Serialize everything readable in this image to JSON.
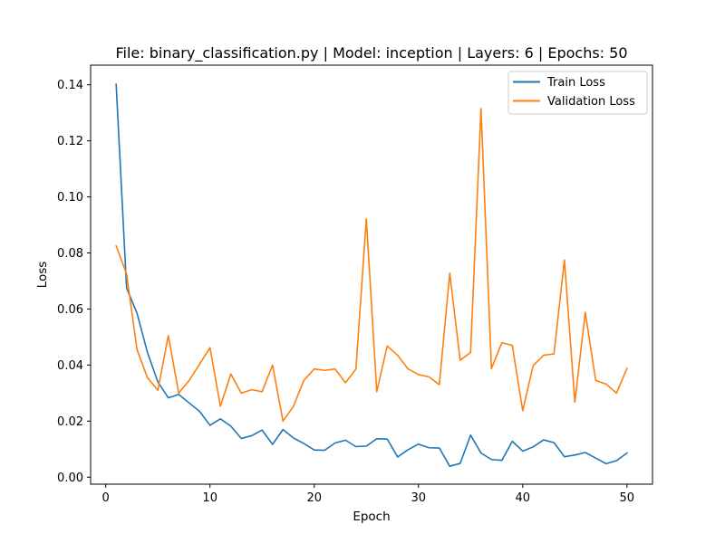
{
  "chart_data": {
    "type": "line",
    "title": "File: binary_classification.py | Model: inception | Layers: 6 | Epochs: 50",
    "xlabel": "Epoch",
    "ylabel": "Loss",
    "xlim": [
      -1.45,
      52.45
    ],
    "ylim": [
      -0.0025,
      0.147
    ],
    "xticks": [
      0,
      10,
      20,
      30,
      40,
      50
    ],
    "xtick_labels": [
      "0",
      "10",
      "20",
      "30",
      "40",
      "50"
    ],
    "yticks": [
      0.0,
      0.02,
      0.04,
      0.06,
      0.08,
      0.1,
      0.12,
      0.14
    ],
    "ytick_labels": [
      "0.00",
      "0.02",
      "0.04",
      "0.06",
      "0.08",
      "0.10",
      "0.12",
      "0.14"
    ],
    "grid": false,
    "legend_position": "top-right",
    "x": [
      1,
      2,
      3,
      4,
      5,
      6,
      7,
      8,
      9,
      10,
      11,
      12,
      13,
      14,
      15,
      16,
      17,
      18,
      19,
      20,
      21,
      22,
      23,
      24,
      25,
      26,
      27,
      28,
      29,
      30,
      31,
      32,
      33,
      34,
      35,
      36,
      37,
      38,
      39,
      40,
      41,
      42,
      43,
      44,
      45,
      46,
      47,
      48,
      49,
      50
    ],
    "series": [
      {
        "name": "Train Loss",
        "color": "#1f77b4",
        "values": [
          0.1402,
          0.0675,
          0.0585,
          0.0445,
          0.034,
          0.0283,
          0.0295,
          0.0265,
          0.0235,
          0.0185,
          0.0208,
          0.0182,
          0.0138,
          0.0148,
          0.0168,
          0.0117,
          0.017,
          0.014,
          0.012,
          0.0097,
          0.0096,
          0.0122,
          0.0132,
          0.0109,
          0.0111,
          0.0137,
          0.0136,
          0.0072,
          0.0098,
          0.0118,
          0.0105,
          0.0104,
          0.0039,
          0.0049,
          0.015,
          0.0086,
          0.0063,
          0.006,
          0.0128,
          0.0093,
          0.0108,
          0.0133,
          0.0123,
          0.0073,
          0.0079,
          0.0088,
          0.0068,
          0.0048,
          0.0059,
          0.0086
        ]
      },
      {
        "name": "Validation Loss",
        "color": "#ff7f0e",
        "values": [
          0.0825,
          0.0725,
          0.0455,
          0.0355,
          0.031,
          0.0505,
          0.03,
          0.0345,
          0.0403,
          0.0462,
          0.0253,
          0.0368,
          0.03,
          0.0312,
          0.0305,
          0.04,
          0.02,
          0.0252,
          0.0345,
          0.0386,
          0.0381,
          0.0386,
          0.0337,
          0.0386,
          0.0922,
          0.0305,
          0.0468,
          0.0435,
          0.0386,
          0.0366,
          0.0358,
          0.033,
          0.0728,
          0.0417,
          0.0445,
          0.1315,
          0.0387,
          0.048,
          0.047,
          0.0237,
          0.0398,
          0.0435,
          0.044,
          0.0775,
          0.0268,
          0.0588,
          0.0345,
          0.0332,
          0.03,
          0.0388
        ]
      }
    ]
  }
}
